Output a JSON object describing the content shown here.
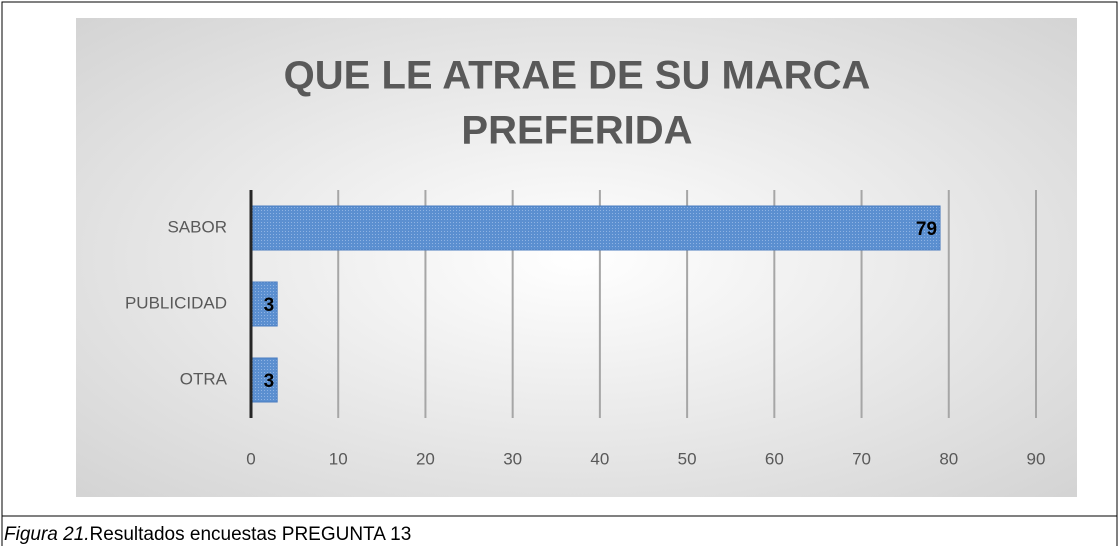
{
  "chart_data": {
    "type": "bar",
    "orientation": "horizontal",
    "title": [
      "QUE LE ATRAE DE SU MARCA",
      "PREFERIDA"
    ],
    "categories": [
      "SABOR",
      "PUBLICIDAD",
      "OTRA"
    ],
    "values": [
      79,
      3,
      3
    ],
    "color": "#5b8fd0",
    "xlim": [
      0,
      90
    ],
    "xticks": [
      0,
      10,
      20,
      30,
      40,
      50,
      60,
      70,
      80,
      90
    ],
    "grid": true
  },
  "caption": {
    "label": "Figura 21.",
    "text": "Resultados encuestas PREGUNTA 13"
  }
}
